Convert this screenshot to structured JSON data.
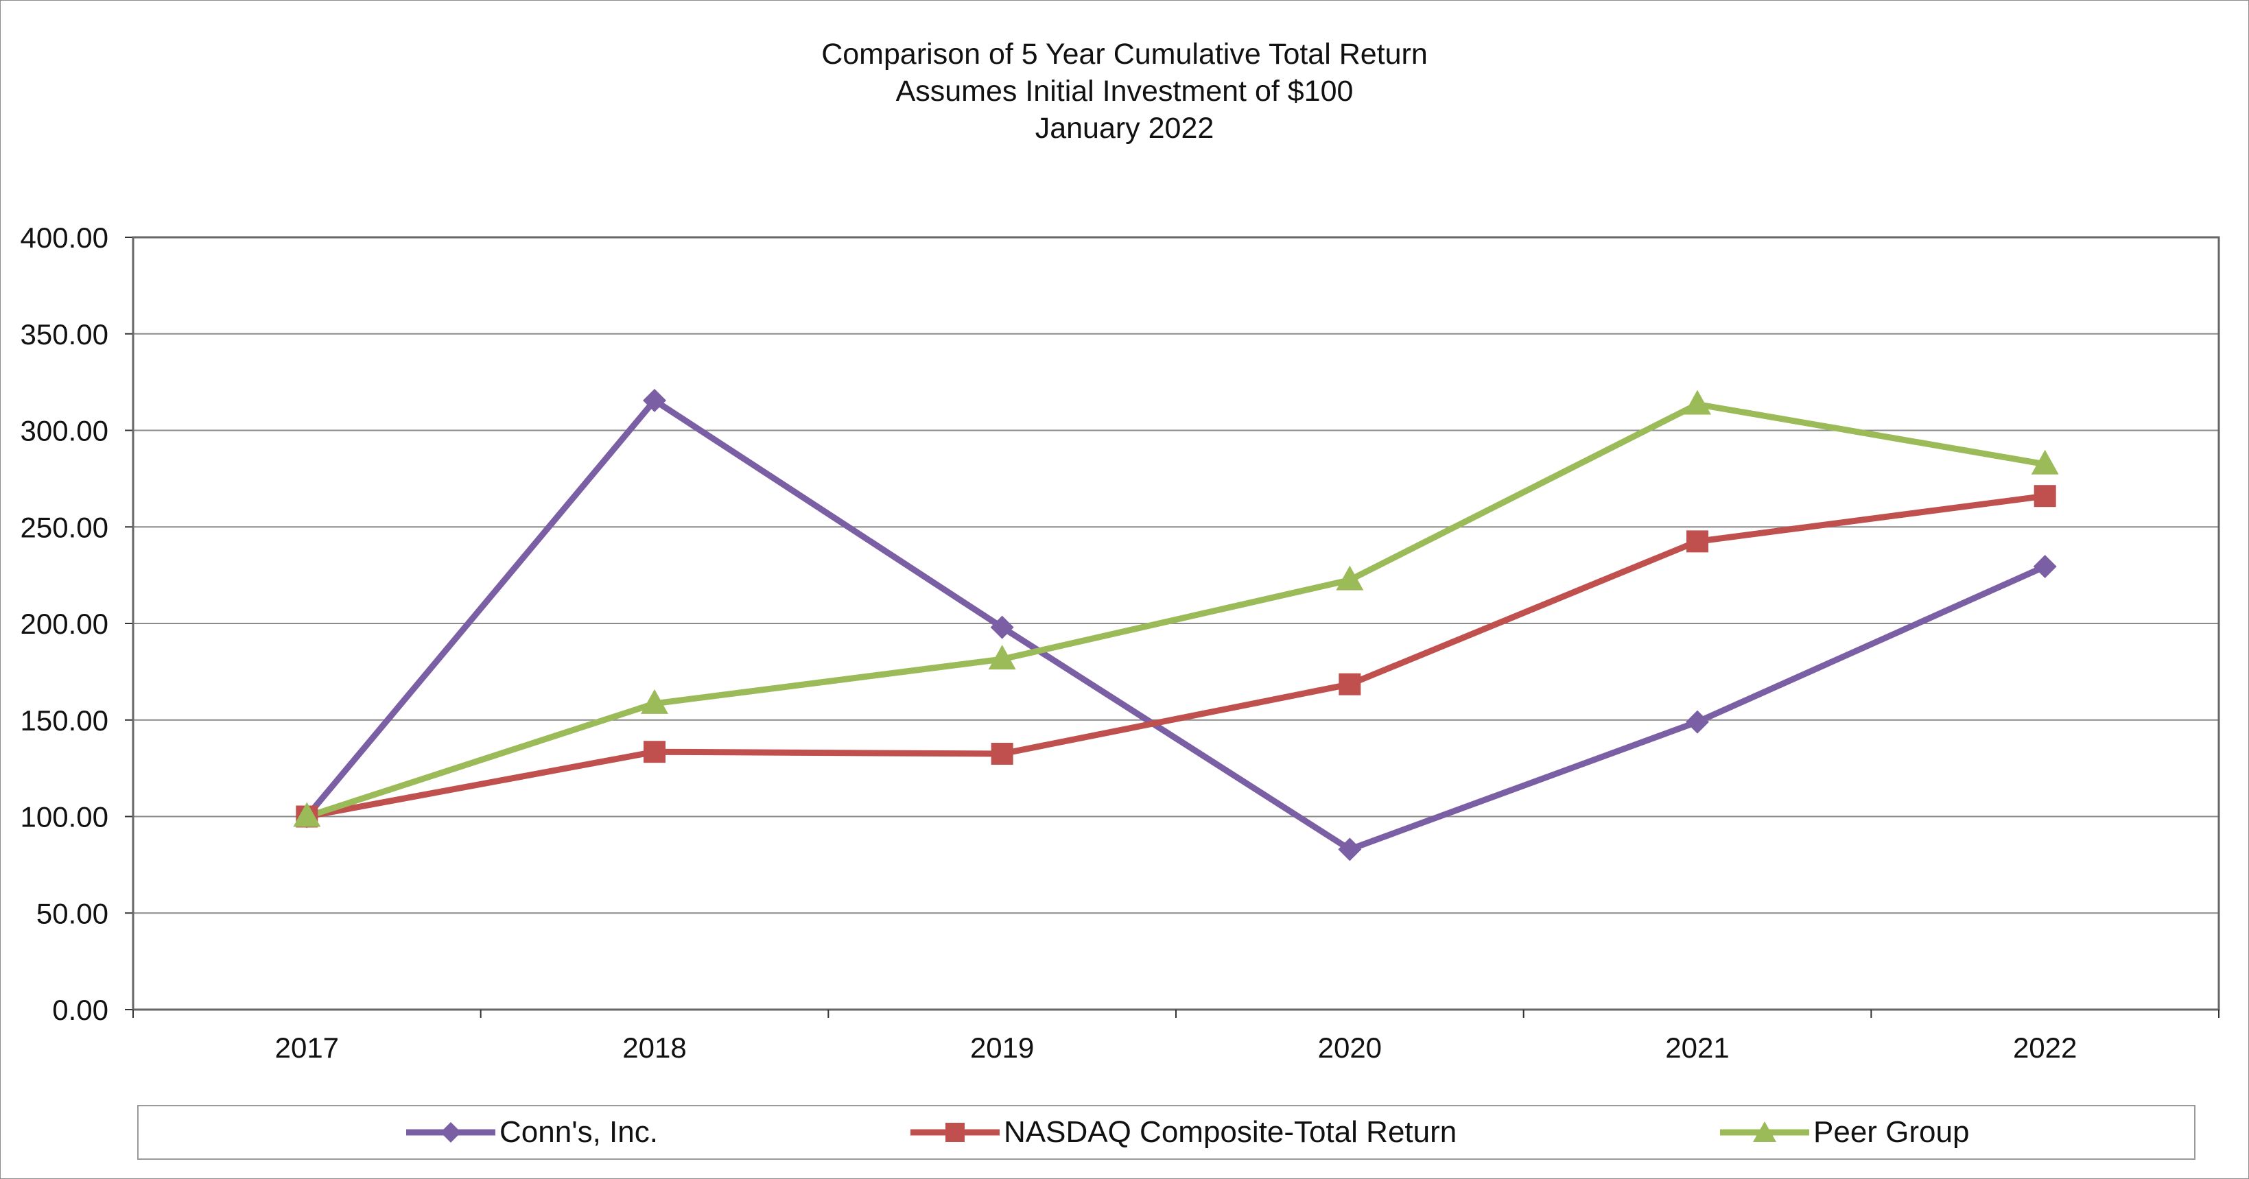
{
  "chart_data": {
    "type": "line",
    "title": [
      "Comparison of 5 Year Cumulative Total Return",
      "Assumes Initial Investment of $100",
      "January 2022"
    ],
    "categories": [
      "2017",
      "2018",
      "2019",
      "2020",
      "2021",
      "2022"
    ],
    "ylim": [
      0,
      400
    ],
    "yticks": [
      "0.00",
      "50.00",
      "100.00",
      "150.00",
      "200.00",
      "250.00",
      "300.00",
      "350.00",
      "400.00"
    ],
    "grid": true,
    "legend_position": "bottom",
    "series": [
      {
        "name": "Conn's, Inc.",
        "color": "#7b5fa5",
        "marker": "diamond",
        "values": [
          100.0,
          315.5,
          198.0,
          83.0,
          149.0,
          229.5
        ]
      },
      {
        "name": "NASDAQ Composite-Total Return",
        "color": "#c0504d",
        "marker": "square",
        "values": [
          100.0,
          133.5,
          132.5,
          168.5,
          242.5,
          266.0
        ]
      },
      {
        "name": "Peer Group",
        "color": "#9bbb59",
        "marker": "triangle",
        "values": [
          100.0,
          158.5,
          181.5,
          222.5,
          313.5,
          282.5
        ]
      }
    ]
  }
}
